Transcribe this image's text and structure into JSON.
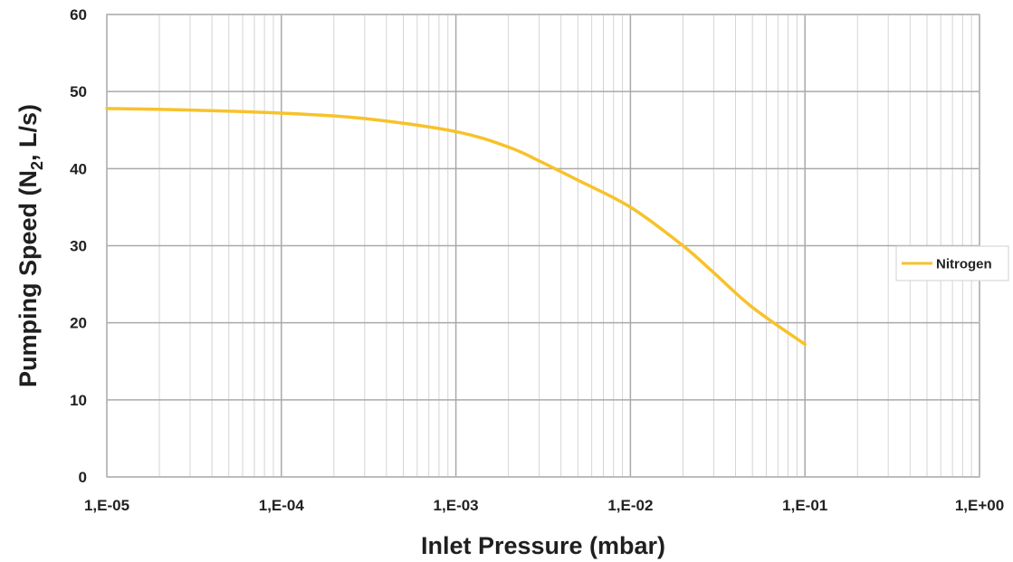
{
  "chart_data": {
    "type": "line",
    "xscale": "log",
    "xlabel": "Inlet Pressure (mbar)",
    "ylabel": {
      "main": "Pumping Speed (N",
      "sub": "2",
      "rest": ", L/s)"
    },
    "xlim": [
      1e-05,
      1
    ],
    "ylim": [
      0,
      60
    ],
    "x_tick_values": [
      1e-05,
      0.0001,
      0.001,
      0.01,
      0.1,
      1
    ],
    "x_tick_labels": [
      "1,E-05",
      "1,E-04",
      "1,E-03",
      "1,E-02",
      "1,E-01",
      "1,E+00"
    ],
    "y_tick_values": [
      0,
      10,
      20,
      30,
      40,
      50,
      60
    ],
    "y_tick_labels": [
      "0",
      "10",
      "20",
      "30",
      "40",
      "50",
      "60"
    ],
    "grid": true,
    "legend_position": "right",
    "series": [
      {
        "name": "Nitrogen",
        "color": "#f7c22a",
        "x": [
          1e-05,
          3e-05,
          0.0001,
          0.0003,
          0.001,
          0.002,
          0.003,
          0.005,
          0.01,
          0.02,
          0.03,
          0.05,
          0.1
        ],
        "y": [
          47.8,
          47.6,
          47.2,
          46.5,
          44.8,
          42.8,
          41.0,
          38.5,
          35.0,
          30.0,
          26.5,
          22.0,
          17.2
        ]
      }
    ]
  }
}
